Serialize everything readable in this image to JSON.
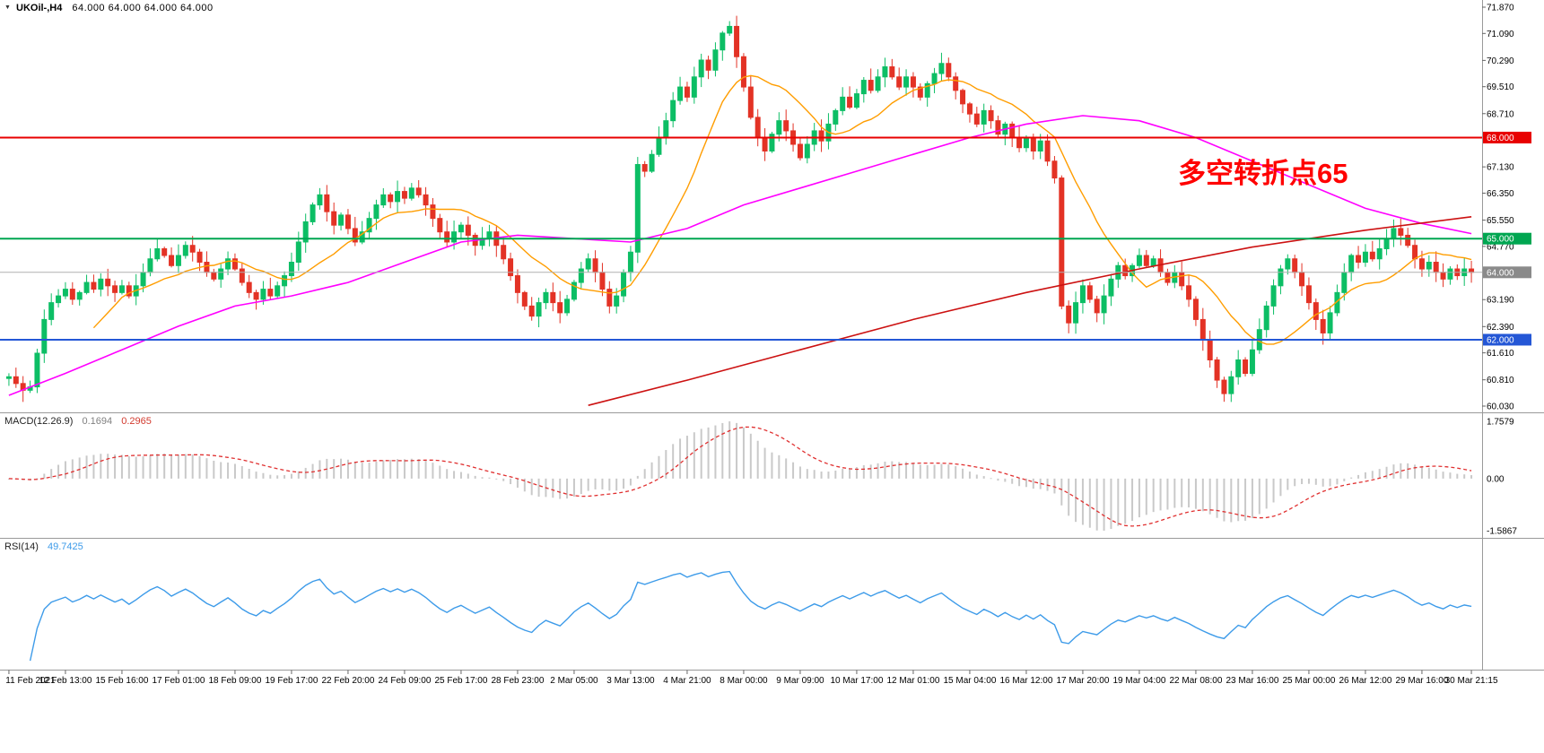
{
  "symbol_bar": {
    "marker": "▼",
    "title": "UKOil-,H4",
    "ohlc": "64.000 64.000 64.000 64.000"
  },
  "annotation": {
    "text": "多空转折点65",
    "color": "#ff0000"
  },
  "macd_panel": {
    "label": "MACD(12.26.9)",
    "value_main": "0.1694",
    "value_signal": "0.2965"
  },
  "rsi_panel": {
    "label": "RSI(14)",
    "value": "49.7425"
  },
  "chart_data": {
    "type": "candlestick",
    "symbol": "UKOil-",
    "timeframe": "H4",
    "legend_position": "top-left",
    "grid": false,
    "colors": {
      "up": "#0cbe65",
      "down": "#e33225",
      "background": "#ffffff",
      "axis_text": "#000000"
    },
    "price_axis": {
      "min": 60.03,
      "max": 71.87,
      "ticks": [
        "71.870",
        "71.090",
        "70.290",
        "69.510",
        "68.710",
        "67.130",
        "66.350",
        "65.550",
        "64.770",
        "63.190",
        "62.390",
        "61.610",
        "60.810",
        "60.030"
      ]
    },
    "hlines": [
      {
        "price": 68.0,
        "label": "68.000",
        "color": "#e80000"
      },
      {
        "price": 65.0,
        "label": "65.000",
        "color": "#00a651"
      },
      {
        "price": 62.0,
        "label": "62.000",
        "color": "#2457d6"
      }
    ],
    "current_price": {
      "price": 64.0,
      "label": "64.000",
      "line_color": "#b0b0b0",
      "badge_color": "#8a8a8a"
    },
    "x_labels": [
      "11 Feb 2021",
      "12 Feb 13:00",
      "15 Feb 16:00",
      "17 Feb 01:00",
      "18 Feb 09:00",
      "19 Feb 17:00",
      "22 Feb 20:00",
      "24 Feb 09:00",
      "25 Feb 17:00",
      "28 Feb 23:00",
      "2 Mar 05:00",
      "3 Mar 13:00",
      "4 Mar 21:00",
      "8 Mar 00:00",
      "9 Mar 09:00",
      "10 Mar 17:00",
      "12 Mar 01:00",
      "15 Mar 04:00",
      "16 Mar 12:00",
      "17 Mar 20:00",
      "19 Mar 04:00",
      "22 Mar 08:00",
      "23 Mar 16:00",
      "25 Mar 00:00",
      "26 Mar 12:00",
      "29 Mar 16:00",
      "30 Mar 21:15"
    ],
    "candles_per_label": 8,
    "first_open": 60.85,
    "closes": [
      60.9,
      60.7,
      60.5,
      60.6,
      61.6,
      62.6,
      63.1,
      63.3,
      63.5,
      63.2,
      63.4,
      63.7,
      63.5,
      63.8,
      63.6,
      63.4,
      63.6,
      63.3,
      63.6,
      64.0,
      64.4,
      64.7,
      64.5,
      64.2,
      64.5,
      64.8,
      64.6,
      64.3,
      64.0,
      63.8,
      64.1,
      64.4,
      64.1,
      63.7,
      63.4,
      63.2,
      63.5,
      63.3,
      63.6,
      63.9,
      64.3,
      64.9,
      65.5,
      66.0,
      66.3,
      65.8,
      65.4,
      65.7,
      65.3,
      64.9,
      65.2,
      65.6,
      66.0,
      66.3,
      66.1,
      66.4,
      66.2,
      66.5,
      66.3,
      66.0,
      65.6,
      65.2,
      64.9,
      65.2,
      65.4,
      65.1,
      64.8,
      65.0,
      65.2,
      64.8,
      64.4,
      63.9,
      63.4,
      63.0,
      62.7,
      63.1,
      63.4,
      63.1,
      62.8,
      63.2,
      63.7,
      64.1,
      64.4,
      64.0,
      63.5,
      63.0,
      63.3,
      64.0,
      64.6,
      67.2,
      67.0,
      67.5,
      68.0,
      68.5,
      69.1,
      69.5,
      69.2,
      69.8,
      70.3,
      70.0,
      70.6,
      71.1,
      71.3,
      70.4,
      69.5,
      68.6,
      68.0,
      67.6,
      68.1,
      68.5,
      68.2,
      67.8,
      67.4,
      67.8,
      68.2,
      67.9,
      68.4,
      68.8,
      69.2,
      68.9,
      69.3,
      69.7,
      69.4,
      69.8,
      70.1,
      69.8,
      69.5,
      69.8,
      69.5,
      69.2,
      69.6,
      69.9,
      70.2,
      69.8,
      69.4,
      69.0,
      68.7,
      68.4,
      68.8,
      68.5,
      68.1,
      68.4,
      68.0,
      67.7,
      68.0,
      67.6,
      67.9,
      67.3,
      66.8,
      63.0,
      62.5,
      63.1,
      63.6,
      63.2,
      62.8,
      63.3,
      63.8,
      64.2,
      63.9,
      64.2,
      64.5,
      64.2,
      64.4,
      64.0,
      63.7,
      64.0,
      63.6,
      63.2,
      62.6,
      62.0,
      61.4,
      60.8,
      60.4,
      60.9,
      61.4,
      61.0,
      61.7,
      62.3,
      63.0,
      63.6,
      64.1,
      64.4,
      64.0,
      63.6,
      63.1,
      62.6,
      62.2,
      62.8,
      63.4,
      64.0,
      64.5,
      64.3,
      64.6,
      64.4,
      64.7,
      65.0,
      65.3,
      65.1,
      64.8,
      64.4,
      64.1,
      64.3,
      64.0,
      63.8,
      64.1,
      63.9,
      64.1,
      64.0
    ],
    "overlays": {
      "ma_fast": {
        "type": "sma",
        "period": 13,
        "color": "#ff9d00"
      },
      "ma_mid": {
        "color": "#ff00ff",
        "points": [
          [
            0,
            60.35
          ],
          [
            8,
            61.0
          ],
          [
            16,
            61.7
          ],
          [
            24,
            62.4
          ],
          [
            32,
            63.0
          ],
          [
            40,
            63.3
          ],
          [
            48,
            63.7
          ],
          [
            56,
            64.3
          ],
          [
            64,
            64.9
          ],
          [
            72,
            65.1
          ],
          [
            80,
            65.0
          ],
          [
            88,
            64.9
          ],
          [
            96,
            65.3
          ],
          [
            104,
            66.0
          ],
          [
            112,
            66.5
          ],
          [
            120,
            67.0
          ],
          [
            128,
            67.5
          ],
          [
            136,
            68.0
          ],
          [
            144,
            68.4
          ],
          [
            152,
            68.65
          ],
          [
            160,
            68.5
          ],
          [
            168,
            68.0
          ],
          [
            176,
            67.3
          ],
          [
            184,
            66.6
          ],
          [
            192,
            65.9
          ],
          [
            200,
            65.45
          ],
          [
            207,
            65.15
          ]
        ]
      },
      "ma_slow": {
        "color": "#cc1111",
        "points": [
          [
            82,
            60.05
          ],
          [
            96,
            60.8
          ],
          [
            112,
            61.7
          ],
          [
            128,
            62.6
          ],
          [
            144,
            63.4
          ],
          [
            160,
            64.1
          ],
          [
            176,
            64.75
          ],
          [
            192,
            65.25
          ],
          [
            207,
            65.65
          ]
        ]
      }
    },
    "macd": {
      "fast": 12,
      "slow": 26,
      "signal": 9,
      "axis_labels": [
        "1.7579",
        "0.00",
        "-1.5867"
      ],
      "hist_color": "#c9c9c9",
      "signal_color": "#e03030",
      "current_macd": 0.1694,
      "current_signal": 0.2965
    },
    "rsi": {
      "period": 14,
      "color": "#3d9be9",
      "current": 49.7425
    }
  }
}
